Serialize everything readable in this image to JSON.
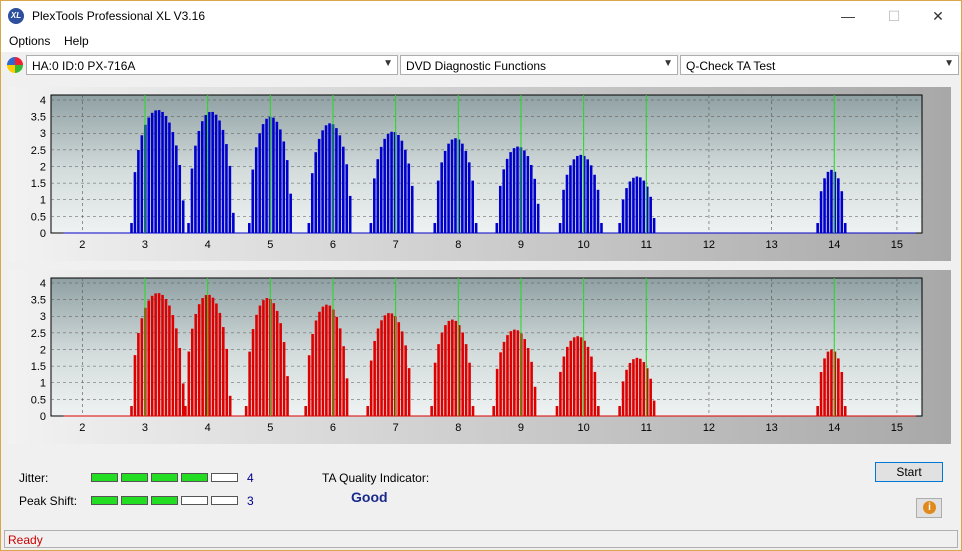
{
  "app": {
    "title": "PlexTools Professional XL V3.16",
    "icon_text": "XL"
  },
  "window_controls": {
    "minimize": "—",
    "maximize": "☐",
    "close": "✕"
  },
  "menu": [
    {
      "label": "Options"
    },
    {
      "label": "Help"
    }
  ],
  "toolbar": {
    "drive": "HA:0 ID:0  PX-716A",
    "function": "DVD Diagnostic Functions",
    "test": "Q-Check TA Test"
  },
  "chart_data": [
    {
      "type": "bar",
      "color": "#0000cc",
      "xlim": [
        1.5,
        15.4
      ],
      "ylim": [
        0,
        4.15
      ],
      "xticks": [
        "2",
        "3",
        "4",
        "5",
        "6",
        "7",
        "8",
        "9",
        "10",
        "11",
        "12",
        "13",
        "14",
        "15"
      ],
      "yticks": [
        "0",
        "0.5",
        "1",
        "1.5",
        "2",
        "2.5",
        "3",
        "3.5",
        "4"
      ],
      "green_lines": [
        3,
        4,
        5,
        6,
        7,
        8,
        9,
        10,
        11,
        14
      ],
      "bumps": [
        {
          "center": 3.2,
          "peak": 3.7,
          "half_width": 0.42
        },
        {
          "center": 4.05,
          "peak": 3.65,
          "half_width": 0.36
        },
        {
          "center": 5.0,
          "peak": 3.5,
          "half_width": 0.34
        },
        {
          "center": 5.95,
          "peak": 3.3,
          "half_width": 0.34
        },
        {
          "center": 6.95,
          "peak": 3.05,
          "half_width": 0.35
        },
        {
          "center": 7.95,
          "peak": 2.85,
          "half_width": 0.33
        },
        {
          "center": 8.95,
          "peak": 2.6,
          "half_width": 0.34
        },
        {
          "center": 9.95,
          "peak": 2.35,
          "half_width": 0.33
        },
        {
          "center": 10.85,
          "peak": 1.7,
          "half_width": 0.28
        },
        {
          "center": 13.95,
          "peak": 1.9,
          "half_width": 0.22
        }
      ]
    },
    {
      "type": "bar",
      "color": "#dd0000",
      "xlim": [
        1.5,
        15.4
      ],
      "ylim": [
        0,
        4.15
      ],
      "xticks": [
        "2",
        "3",
        "4",
        "5",
        "6",
        "7",
        "8",
        "9",
        "10",
        "11",
        "12",
        "13",
        "14",
        "15"
      ],
      "yticks": [
        "0",
        "0.5",
        "1",
        "1.5",
        "2",
        "2.5",
        "3",
        "3.5",
        "4"
      ],
      "green_lines": [
        3,
        4,
        5,
        6,
        7,
        8,
        9,
        10,
        11,
        14
      ],
      "bumps": [
        {
          "center": 3.2,
          "peak": 3.7,
          "half_width": 0.42
        },
        {
          "center": 4.0,
          "peak": 3.65,
          "half_width": 0.36
        },
        {
          "center": 4.95,
          "peak": 3.55,
          "half_width": 0.34
        },
        {
          "center": 5.9,
          "peak": 3.35,
          "half_width": 0.34
        },
        {
          "center": 6.9,
          "peak": 3.1,
          "half_width": 0.35
        },
        {
          "center": 7.9,
          "peak": 2.9,
          "half_width": 0.33
        },
        {
          "center": 8.9,
          "peak": 2.6,
          "half_width": 0.34
        },
        {
          "center": 9.9,
          "peak": 2.4,
          "half_width": 0.33
        },
        {
          "center": 10.85,
          "peak": 1.75,
          "half_width": 0.28
        },
        {
          "center": 13.95,
          "peak": 2.0,
          "half_width": 0.22
        }
      ]
    }
  ],
  "metrics": {
    "jitter_label": "Jitter:",
    "jitter_value": "4",
    "jitter_level": 4,
    "peak_label": "Peak Shift:",
    "peak_value": "3",
    "peak_level": 3,
    "max_level": 5,
    "ta_label": "TA Quality Indicator:",
    "ta_value": "Good"
  },
  "buttons": {
    "start": "Start",
    "info_icon": "i"
  },
  "status": {
    "text": "Ready"
  }
}
